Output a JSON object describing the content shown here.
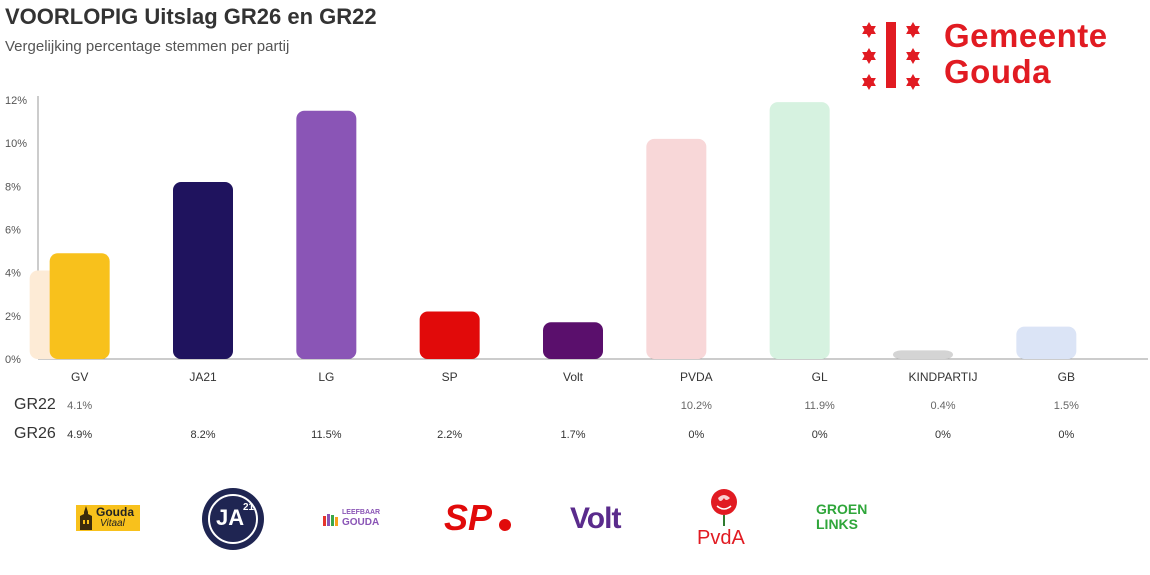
{
  "header": {
    "title": "VOORLOPIG Uitslag GR26 en GR22",
    "subtitle": "Vergelijking percentage stemmen per partij"
  },
  "brand": {
    "name_line1": "Gemeente",
    "name_line2": "Gouda",
    "color": "#e11b22"
  },
  "chart_data": {
    "type": "bar",
    "title": "VOORLOPIG Uitslag GR26 en GR22",
    "subtitle": "Vergelijking percentage stemmen per partij",
    "categories": [
      "GV",
      "JA21",
      "LG",
      "SP",
      "Volt",
      "PVDA",
      "GL",
      "KINDPARTIJ",
      "GB"
    ],
    "yticks": [
      "0%",
      "2%",
      "4%",
      "6%",
      "8%",
      "10%",
      "12%"
    ],
    "ylim": [
      0,
      12
    ],
    "series": [
      {
        "name": "GR22",
        "values": [
          4.1,
          null,
          null,
          null,
          null,
          10.2,
          11.9,
          0.4,
          1.5
        ],
        "labels": [
          "4.1%",
          "",
          "",
          "",
          "",
          "10.2%",
          "11.9%",
          "0.4%",
          "1.5%"
        ],
        "colors": [
          "#fdebd6",
          null,
          null,
          null,
          null,
          "#f8d7d8",
          "#d6f2e0",
          "#d4d4d4",
          "#dbe4f6"
        ]
      },
      {
        "name": "GR26",
        "values": [
          4.9,
          8.2,
          11.5,
          2.2,
          1.7,
          0,
          0,
          0,
          0
        ],
        "labels": [
          "4.9%",
          "8.2%",
          "11.5%",
          "2.2%",
          "1.7%",
          "0%",
          "0%",
          "0%",
          "0%"
        ],
        "colors": [
          "#f8c11c",
          "#1f135e",
          "#8a55b6",
          "#e10a0a",
          "#5a0f6c",
          "#f8d7d8",
          "#d6f2e0",
          "#d4d4d4",
          "#dbe4f6"
        ]
      }
    ]
  },
  "party_logos": [
    {
      "icon": "gouda-vitaal-logo",
      "line1": "Gouda",
      "line2": "Vitaal"
    },
    {
      "icon": "ja21-logo",
      "text": "JA",
      "sup": "21"
    },
    {
      "icon": "leefbaar-gouda-logo",
      "line1": "LEEFBAAR",
      "line2": "GOUDA"
    },
    {
      "icon": "sp-logo",
      "text": "SP"
    },
    {
      "icon": "volt-logo",
      "text": "Volt"
    },
    {
      "icon": "pvda-logo",
      "text": "PvdA"
    },
    {
      "icon": "groenlinks-logo",
      "line1": "GROEN",
      "line2": "LINKS"
    }
  ]
}
